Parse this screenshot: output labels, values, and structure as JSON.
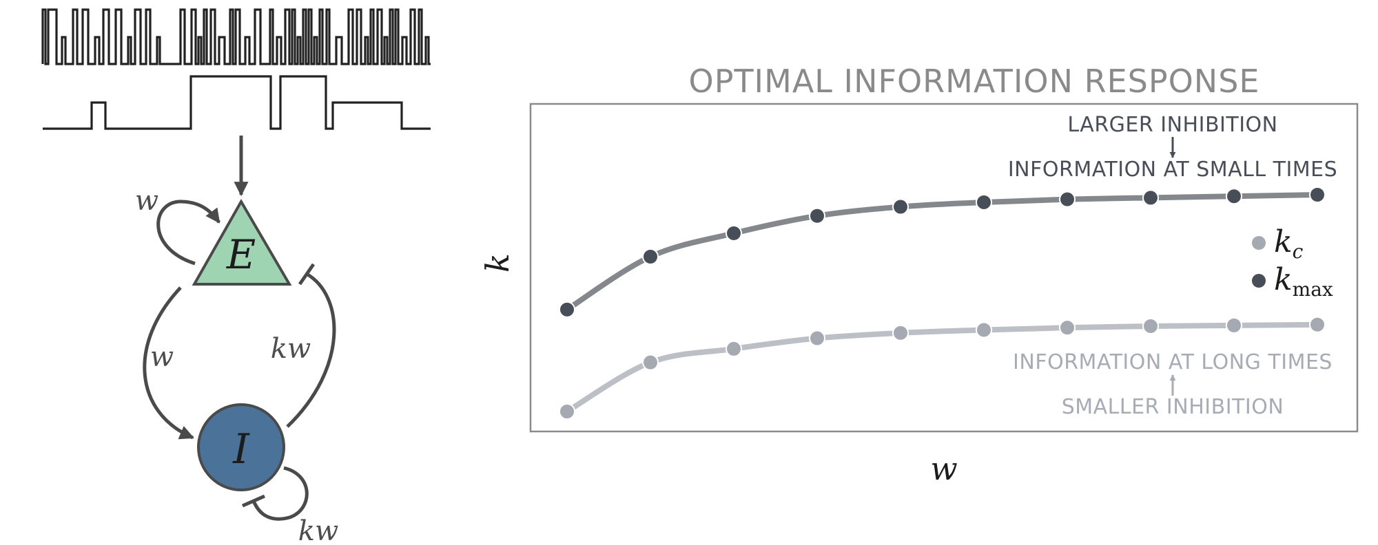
{
  "diagram": {
    "excitatory_label": "E",
    "inhibitory_label": "I",
    "edge_labels": {
      "self_excitation": "w",
      "excitatory_to_inhibitory": "w",
      "inhibitory_to_excitatory": "kw",
      "self_inhibition": "kw"
    },
    "colors": {
      "excitatory_fill": "#9fd4b2",
      "inhibitory_fill": "#4b7399",
      "stroke": "#4a4a4a",
      "trace": "#222222"
    }
  },
  "chart_data": {
    "type": "line",
    "title": "OPTIMAL INFORMATION RESPONSE",
    "xlabel": "w",
    "ylabel": "k",
    "ticks": "none",
    "series": [
      {
        "name": "k_max",
        "legend_base": "k",
        "legend_sub": "max",
        "color": "#474e57",
        "line_color": "#84888d",
        "values": [
          0.0,
          0.7,
          1.01,
          1.24,
          1.36,
          1.42,
          1.46,
          1.48,
          1.5,
          1.52
        ]
      },
      {
        "name": "k_c",
        "legend_base": "k",
        "legend_sub": "c",
        "color": "#a4a9b2",
        "line_color": "#bcc0c6",
        "values": [
          -1.35,
          -0.7,
          -0.52,
          -0.38,
          -0.31,
          -0.27,
          -0.24,
          -0.22,
          -0.21,
          -0.2
        ]
      }
    ],
    "annotations": {
      "upper_top": "LARGER INHIBITION",
      "upper_bottom": "INFORMATION AT SMALL TIMES",
      "lower_top": "INFORMATION AT LONG TIMES",
      "lower_bottom": "SMALLER INHIBITION"
    },
    "legend_position": "right",
    "grid": false
  }
}
